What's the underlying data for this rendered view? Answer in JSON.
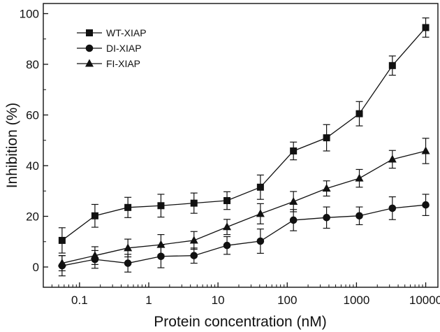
{
  "chart_data": {
    "type": "line",
    "title": "",
    "xlabel": "Protein concentration (nM)",
    "ylabel": "Inhibition (%)",
    "xscale": "log",
    "xlim": [
      0.03,
      15000
    ],
    "ylim": [
      -8,
      104
    ],
    "x_ticks": [
      0.1,
      1,
      10,
      100,
      1000,
      10000
    ],
    "x_tick_labels": [
      "0.1",
      "1",
      "10",
      "100",
      "1000",
      "10000"
    ],
    "y_ticks": [
      0,
      20,
      40,
      60,
      80,
      100
    ],
    "y_tick_labels": [
      "0",
      "20",
      "40",
      "60",
      "80",
      "100"
    ],
    "grid": false,
    "legend_position": "top-left",
    "x": [
      0.056,
      0.167,
      0.5,
      1.5,
      4.5,
      13.5,
      41,
      123,
      370,
      1100,
      3300,
      10000
    ],
    "series": [
      {
        "name": "WT-XIAP",
        "marker": "square",
        "values": [
          10.5,
          20.2,
          23.5,
          24.2,
          25.2,
          26.2,
          31.5,
          45.8,
          51.0,
          60.5,
          79.5,
          94.5
        ],
        "errors": [
          5.0,
          4.5,
          4.0,
          4.5,
          4.0,
          3.5,
          4.8,
          3.5,
          5.2,
          4.8,
          3.8,
          3.8
        ]
      },
      {
        "name": "DI-XIAP",
        "marker": "circle",
        "values": [
          0.5,
          3.0,
          1.5,
          4.2,
          4.5,
          8.5,
          10.2,
          18.5,
          19.5,
          20.2,
          23.2,
          24.5
        ],
        "errors": [
          4.0,
          3.5,
          3.5,
          4.5,
          3.0,
          3.5,
          4.8,
          4.2,
          4.2,
          3.5,
          4.5,
          4.2
        ]
      },
      {
        "name": "FI-XIAP",
        "marker": "triangle",
        "values": [
          1.5,
          4.5,
          7.5,
          8.8,
          10.5,
          15.8,
          21.0,
          25.8,
          31.0,
          35.0,
          42.5,
          45.8
        ],
        "errors": [
          3.0,
          3.5,
          3.5,
          4.0,
          3.5,
          3.0,
          4.0,
          4.0,
          3.0,
          3.5,
          3.5,
          5.0
        ]
      }
    ]
  }
}
